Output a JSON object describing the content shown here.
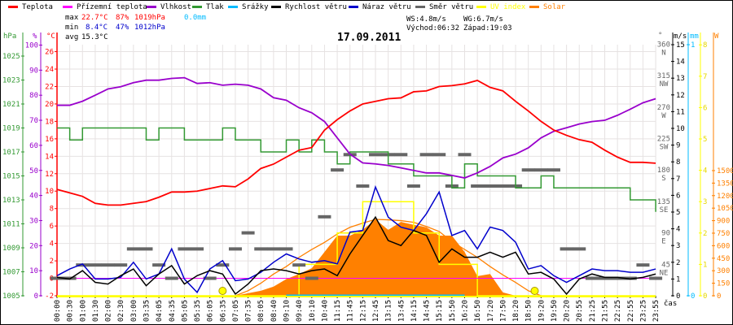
{
  "legend": [
    {
      "label": "Teplota",
      "color": "#ff0000"
    },
    {
      "label": "Přízemní teplota",
      "color": "#ff00ff"
    },
    {
      "label": "Vlhkost",
      "color": "#9900cc"
    },
    {
      "label": "Tlak",
      "color": "#339933"
    },
    {
      "label": "Srážky",
      "color": "#00bbff"
    },
    {
      "label": "Rychlost větru",
      "color": "#000000"
    },
    {
      "label": "Náraz větru",
      "color": "#0000cc"
    },
    {
      "label": "Směr větru",
      "color": "#666666"
    },
    {
      "label": "UV index",
      "color": "#ffff00"
    },
    {
      "label": "Solar",
      "color": "#ff8000"
    }
  ],
  "stats": {
    "max_label": "max",
    "max_temp": "22.7°C",
    "max_hum": "87%",
    "max_press": "1019hPa",
    "rain": "0.0mm",
    "min_label": "min",
    "min_temp": "8.4°C",
    "min_hum": "47%",
    "min_press": "1012hPa",
    "avg_label": "avg",
    "avg_temp": "15.3°C",
    "ws": "WS:4.8m/s",
    "wg": "WG:6.7m/s",
    "sunrise": "Východ:06:32",
    "sunset": "Západ:19:03"
  },
  "chart_data": {
    "type": "line",
    "title": "17.09.2011",
    "xlabel": "čas",
    "x": [
      "00:00",
      "00:30",
      "01:00",
      "01:30",
      "02:00",
      "02:30",
      "03:00",
      "03:35",
      "04:05",
      "04:35",
      "05:05",
      "05:35",
      "06:05",
      "06:35",
      "07:05",
      "07:35",
      "08:05",
      "08:40",
      "09:10",
      "09:40",
      "10:10",
      "10:40",
      "11:15",
      "11:45",
      "12:15",
      "12:45",
      "13:15",
      "13:45",
      "14:15",
      "14:45",
      "15:15",
      "15:50",
      "16:20",
      "16:50",
      "17:20",
      "17:50",
      "18:20",
      "18:50",
      "19:20",
      "19:50",
      "20:20",
      "20:55",
      "21:25",
      "21:55",
      "22:25",
      "22:55",
      "23:25",
      "23:55"
    ],
    "axes": {
      "pressure": {
        "unit": "hPa",
        "range": [
          1005,
          1026
        ],
        "ticks": [
          1005,
          1007,
          1009,
          1011,
          1013,
          1015,
          1017,
          1019,
          1021,
          1023,
          1025
        ]
      },
      "humidity": {
        "unit": "%",
        "range": [
          0,
          100
        ],
        "ticks": [
          0,
          10,
          20,
          30,
          40,
          50,
          60,
          70,
          80,
          90,
          100
        ]
      },
      "temperature": {
        "unit": "°C",
        "range": [
          -2,
          26.9
        ],
        "ticks": [
          -2,
          0,
          2,
          4,
          6,
          8,
          10,
          12,
          14,
          16,
          18,
          20,
          22,
          24,
          26
        ]
      },
      "direction": {
        "unit": "°",
        "range": [
          0,
          360
        ],
        "ticks": [
          {
            "v": 360,
            "l": "N"
          },
          {
            "v": 315,
            "l": "NW"
          },
          {
            "v": 270,
            "l": "W"
          },
          {
            "v": 225,
            "l": "SW"
          },
          {
            "v": 180,
            "l": "S"
          },
          {
            "v": 135,
            "l": "SE"
          },
          {
            "v": 90,
            "l": "E"
          },
          {
            "v": 45,
            "l": "NE"
          }
        ]
      },
      "wind": {
        "unit": "m/s",
        "range": [
          0,
          15
        ],
        "ticks": [
          0,
          1,
          2,
          3,
          4,
          5,
          6,
          7,
          8,
          9,
          10,
          11,
          12,
          13,
          14,
          15
        ]
      },
      "rain": {
        "unit": "mm",
        "range": [
          0,
          1
        ],
        "ticks": [
          0,
          1
        ]
      },
      "uv": {
        "unit": "",
        "range": [
          0,
          8
        ],
        "ticks": [
          0,
          1,
          2,
          3,
          4,
          5,
          6,
          7,
          8
        ]
      },
      "solar": {
        "unit": "W",
        "range": [
          0,
          3000
        ],
        "ticks": [
          0,
          150,
          300,
          450,
          600,
          750,
          900,
          1050,
          1200,
          1350,
          1500
        ]
      }
    },
    "series": [
      {
        "name": "Teplota",
        "axis": "temperature",
        "values": [
          10.2,
          9.8,
          9.4,
          8.6,
          8.4,
          8.4,
          8.6,
          8.8,
          9.3,
          9.9,
          9.9,
          10.0,
          10.3,
          10.6,
          10.5,
          11.4,
          12.6,
          13.1,
          13.9,
          14.7,
          15.0,
          17.0,
          18.2,
          19.2,
          20.0,
          20.3,
          20.6,
          20.7,
          21.4,
          21.5,
          22.0,
          22.1,
          22.3,
          22.7,
          21.9,
          21.5,
          20.3,
          19.2,
          18.0,
          17.0,
          16.4,
          15.9,
          15.6,
          14.7,
          13.9,
          13.3,
          13.3,
          13.2
        ]
      },
      {
        "name": "Přízemní teplota",
        "axis": "temperature",
        "values": [
          0,
          0,
          0,
          0,
          0,
          0,
          0,
          0,
          0,
          0,
          0,
          0,
          0,
          0,
          0,
          0,
          0,
          0,
          0,
          0,
          0,
          0,
          0,
          0,
          0,
          0,
          0,
          0,
          0,
          0,
          0,
          0,
          0,
          0,
          0,
          0,
          0,
          0,
          0,
          0,
          0,
          0,
          0,
          0,
          0,
          0,
          0,
          0
        ]
      },
      {
        "name": "Vlhkost",
        "axis": "humidity",
        "values": [
          76,
          76,
          77.6,
          80,
          82.5,
          83.4,
          85,
          86,
          86,
          86.7,
          87,
          84.7,
          85,
          84,
          84.4,
          84,
          82.5,
          79,
          78,
          75,
          73,
          69.5,
          63,
          56.5,
          53,
          52.6,
          52,
          51,
          50,
          49,
          49,
          48,
          47,
          49,
          51.6,
          55,
          56.5,
          59,
          63,
          65.6,
          67,
          68.5,
          69.5,
          70,
          72,
          74.4,
          77,
          78.6
        ]
      },
      {
        "name": "Tlak",
        "axis": "pressure",
        "values": [
          1019,
          1018,
          1019,
          1019,
          1019,
          1019,
          1019,
          1018,
          1019,
          1019,
          1018,
          1018,
          1018,
          1019,
          1018,
          1018,
          1017,
          1017,
          1018,
          1017,
          1018,
          1017,
          1016,
          1017,
          1017,
          1017,
          1016,
          1016,
          1015,
          1015,
          1015,
          1014,
          1016,
          1015,
          1015,
          1015,
          1014,
          1014,
          1015,
          1014,
          1014,
          1014,
          1014,
          1014,
          1014,
          1013,
          1013,
          1012
        ]
      },
      {
        "name": "Srážky",
        "axis": "rain",
        "values": [
          null,
          null,
          null,
          null,
          null,
          null,
          null,
          null,
          null,
          null,
          null,
          null,
          null,
          null,
          null,
          null,
          null,
          null,
          0,
          0,
          0,
          0,
          0,
          0,
          0,
          0,
          0,
          0,
          0,
          0,
          0,
          0,
          0,
          null,
          null,
          null,
          null,
          null,
          null,
          null,
          null,
          null,
          null,
          null,
          null,
          null,
          null,
          null
        ]
      },
      {
        "name": "Rychlost větru",
        "axis": "wind",
        "values": [
          1.1,
          1.0,
          1.5,
          0.8,
          0.7,
          1.2,
          1.6,
          0.6,
          1.3,
          1.8,
          0.7,
          1.2,
          1.5,
          1.3,
          0.1,
          0.7,
          1.5,
          1.6,
          1.5,
          1.3,
          1.5,
          1.6,
          1.2,
          2.5,
          3.6,
          4.7,
          3.3,
          3.0,
          3.9,
          3.6,
          2.0,
          2.8,
          2.3,
          2.3,
          2.6,
          2.3,
          2.6,
          1.3,
          1.4,
          1.0,
          0.1,
          1.0,
          1.3,
          1.1,
          1.1,
          1.0,
          1.1,
          1.3
        ]
      },
      {
        "name": "Náraz větru",
        "axis": "wind",
        "values": [
          1.2,
          1.6,
          1.9,
          1.0,
          1.0,
          1.1,
          2.0,
          1.0,
          1.3,
          2.8,
          1.0,
          0.2,
          1.6,
          2.1,
          0.9,
          1.0,
          1.4,
          2.0,
          2.5,
          2.2,
          2.0,
          2.1,
          1.9,
          3.8,
          3.9,
          6.5,
          4.7,
          4.1,
          3.9,
          4.9,
          6.2,
          3.6,
          3.9,
          2.8,
          4.1,
          3.9,
          3.2,
          1.6,
          1.8,
          1.2,
          0.8,
          1.2,
          1.6,
          1.5,
          1.5,
          1.4,
          1.4,
          1.6
        ]
      },
      {
        "name": "Směr větru",
        "axis": "direction",
        "values": [
          25,
          25,
          44,
          44,
          44,
          44,
          67,
          67,
          44,
          25,
          67,
          67,
          25,
          44,
          67,
          90,
          67,
          67,
          67,
          44,
          25,
          113,
          180,
          202,
          157,
          202,
          202,
          202,
          157,
          202,
          202,
          157,
          202,
          157,
          157,
          157,
          157,
          180,
          180,
          180,
          67,
          67,
          25,
          25,
          25,
          25,
          44,
          25
        ]
      },
      {
        "name": "UV index",
        "axis": "uv",
        "values": [
          0,
          0,
          0,
          0,
          0,
          0,
          0,
          0,
          0,
          0,
          0,
          0,
          0,
          0,
          0,
          0,
          0,
          0,
          0,
          1,
          1,
          1,
          2,
          2,
          3,
          3,
          3,
          3,
          2,
          2,
          1,
          1,
          1,
          0,
          0,
          0,
          0,
          0,
          0,
          0,
          0,
          0,
          0,
          0,
          0,
          0,
          0,
          0
        ]
      },
      {
        "name": "Solar",
        "axis": "solar",
        "type": "area",
        "values": [
          0,
          0,
          0,
          0,
          0,
          0,
          0,
          0,
          0,
          0,
          0,
          0,
          0,
          0,
          0,
          30,
          60,
          110,
          200,
          260,
          330,
          525,
          720,
          720,
          790,
          915,
          790,
          885,
          850,
          820,
          720,
          720,
          525,
          235,
          260,
          40,
          0,
          0,
          0,
          0,
          0,
          0,
          0,
          0,
          0,
          0,
          0,
          0
        ]
      },
      {
        "name": "Solar max",
        "axis": "solar",
        "values": [
          null,
          null,
          null,
          null,
          null,
          null,
          null,
          null,
          null,
          null,
          null,
          null,
          null,
          null,
          0,
          60,
          150,
          260,
          350,
          460,
          555,
          640,
          740,
          820,
          870,
          915,
          910,
          900,
          880,
          830,
          770,
          650,
          555,
          460,
          350,
          250,
          160,
          60,
          0,
          null,
          null,
          null,
          null,
          null,
          null,
          null,
          null,
          null
        ]
      }
    ],
    "sun_markers": [
      {
        "label": "sunrise",
        "time_index": 13.0
      },
      {
        "label": "sunset",
        "time_index": 37.5
      }
    ],
    "grid": true
  }
}
